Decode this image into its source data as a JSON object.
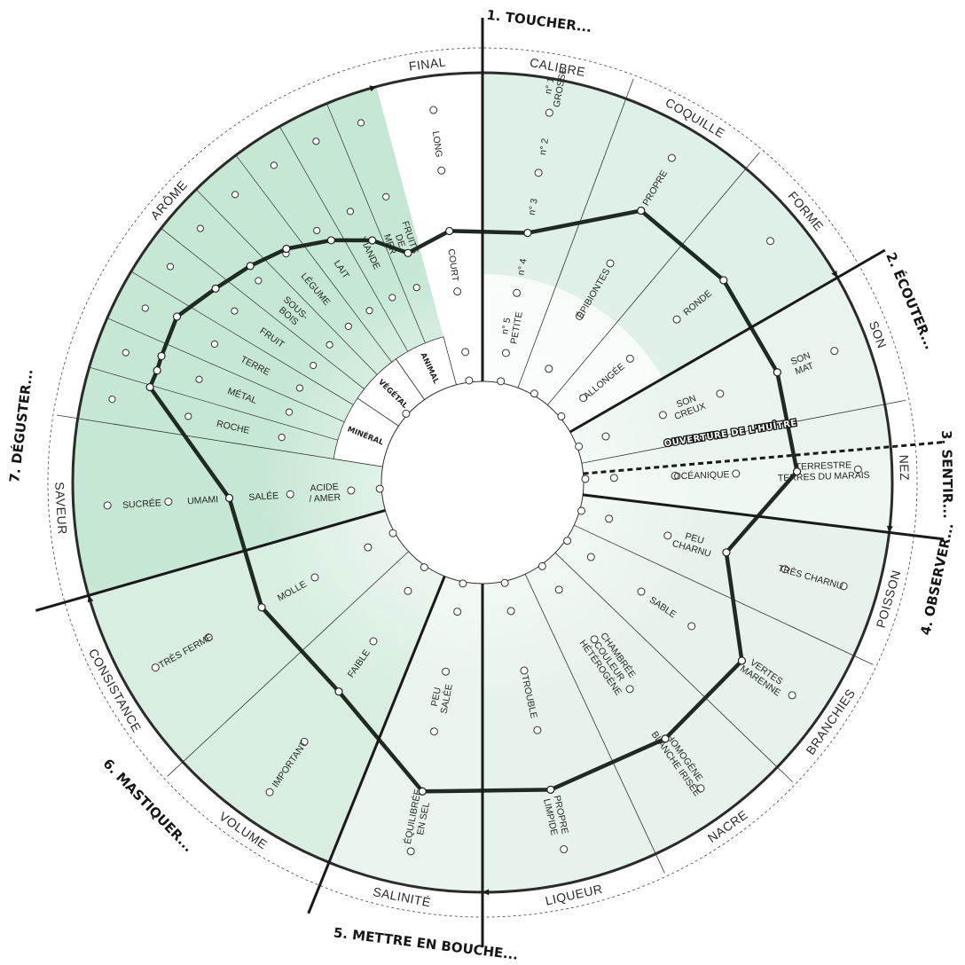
{
  "colors": {
    "section_touch": "#dff0e6",
    "section_listen": "#e9f4ee",
    "section_smell": "#eef7f1",
    "section_look": "#e6f3ea",
    "section_mouth": "#e8f4ec",
    "section_chew": "#d9eee1",
    "section_taste": "#c6e7d4",
    "profile_line": "#1e2a22",
    "ring_line": "#2b2b2b"
  },
  "stages": [
    {
      "id": "toucher",
      "label": "1. TOUCHER..."
    },
    {
      "id": "ecouter",
      "label": "2. ÉCOUTER..."
    },
    {
      "id": "sentir",
      "label": "3. SENTIR..."
    },
    {
      "id": "observer",
      "label": "4. OBSERVER..."
    },
    {
      "id": "bouche",
      "label": "5. METTRE EN BOUCHE..."
    },
    {
      "id": "mastiquer",
      "label": "6. MASTIQUER..."
    },
    {
      "id": "deguster",
      "label": "7. DÉGUSTER..."
    }
  ],
  "ouverture_label": "OUVERTURE DE L'HUÎTRE",
  "segments": [
    {
      "id": "calibre",
      "label": "CALIBRE",
      "levels": [
        "n° 1\nGROSSE",
        "n° 2",
        "n° 3",
        "n° 4",
        "n° 5\nPETITE"
      ]
    },
    {
      "id": "coquille",
      "label": "COQUILLE",
      "levels": [
        "",
        "PROPRE",
        "",
        "ÉPIBIONTES",
        ""
      ]
    },
    {
      "id": "forme",
      "label": "FORME",
      "levels": [
        "",
        "",
        "RONDE",
        "",
        "ALLONGÉE"
      ]
    },
    {
      "id": "son",
      "label": "SON",
      "levels": [
        "",
        "SON\nMAT",
        "",
        "SON\nCREUX",
        ""
      ]
    },
    {
      "id": "nez",
      "label": "NEZ",
      "levels": [
        "",
        "TERRESTRE\nTERRES DU MARAIS",
        "",
        "OCÉANIQUE",
        ""
      ]
    },
    {
      "id": "poisson",
      "label": "POISSON",
      "levels": [
        "",
        "TRÈS CHARNU",
        "",
        "PEU\nCHARNU",
        ""
      ]
    },
    {
      "id": "branchies",
      "label": "BRANCHIES",
      "levels": [
        "",
        "VERTES\nMARENNE",
        "",
        "SABLE",
        ""
      ]
    },
    {
      "id": "nacre",
      "label": "NACRE",
      "levels": [
        "",
        "HOMOGÈNE\nBLANCHE IRISÉE",
        "",
        "CHAMBRÉE\nCOULEUR\nHÉTÉROGÈNE",
        ""
      ]
    },
    {
      "id": "liqueur",
      "label": "LIQUEUR",
      "levels": [
        "",
        "PROPRE\nLIMPIDE",
        "",
        "TROUBLE",
        ""
      ]
    },
    {
      "id": "salinite",
      "label": "SALINITÉ",
      "levels": [
        "",
        "ÉQUILIBRÉE\nEN SEL",
        "",
        "PEU\nSALÉE",
        ""
      ]
    },
    {
      "id": "volume",
      "label": "VOLUME",
      "levels": [
        "",
        "IMPORTANT",
        "",
        "FAIBLE",
        ""
      ]
    },
    {
      "id": "consistance",
      "label": "CONSISTANCE",
      "levels": [
        "",
        "TRÈS FERME",
        "",
        "MOLLE",
        ""
      ]
    },
    {
      "id": "saveur",
      "label": "SAVEUR",
      "levels": [
        "",
        "SUCRÉE",
        "UMAMI",
        "SALÉE",
        "ACIDE\n/ AMER"
      ]
    },
    {
      "id": "arome",
      "label": "ARÔME",
      "levels": [
        "",
        "ROCHE",
        "MÉTAL",
        "TERRE",
        "FRUIT",
        "SOUS-\nBOIS",
        "LÉGUME",
        "LAIT",
        "VIANDE",
        "FRUITS\nDE\nMER"
      ]
    },
    {
      "id": "final",
      "label": "FINAL",
      "levels": [
        "",
        "LONG",
        "",
        "COURT",
        ""
      ]
    }
  ],
  "arome_categories": [
    "MINÉRAL",
    "VÉGÉTAL",
    "ANIMAL"
  ],
  "profile": [
    {
      "segment": "calibre",
      "level": 3
    },
    {
      "segment": "coquille",
      "level": 2
    },
    {
      "segment": "forme",
      "level": 2
    },
    {
      "segment": "son",
      "level": 2
    },
    {
      "segment": "nez",
      "level": 2
    },
    {
      "segment": "poisson",
      "level": 3
    },
    {
      "segment": "branchies",
      "level": 2
    },
    {
      "segment": "nacre",
      "level": 2
    },
    {
      "segment": "liqueur",
      "level": 2
    },
    {
      "segment": "salinite",
      "level": 2
    },
    {
      "segment": "volume",
      "level": 3
    },
    {
      "segment": "consistance",
      "level": 3
    },
    {
      "segment": "saveur",
      "level": 3
    },
    {
      "segment": "arome",
      "level": 2
    },
    {
      "segment": "final",
      "level": 3
    }
  ]
}
